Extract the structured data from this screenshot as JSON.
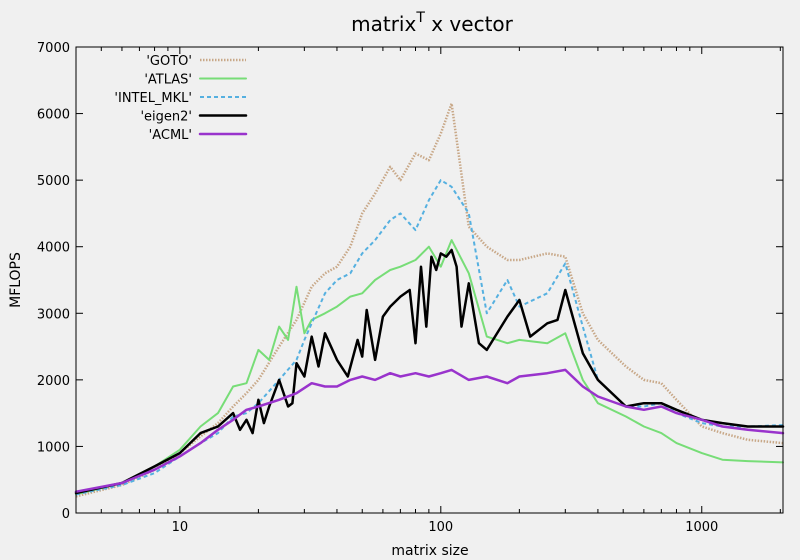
{
  "chart_data": {
    "type": "line",
    "title": "matrix",
    "title_superscript": "T",
    "title_suffix": " x vector",
    "xlabel": "matrix size",
    "ylabel": "MFLOPS",
    "x_scale": "log",
    "xlim": [
      4,
      2048
    ],
    "ylim": [
      0,
      7000
    ],
    "x_ticks": [
      10,
      100,
      1000
    ],
    "x_tick_labels": [
      "10",
      "100",
      "1000"
    ],
    "y_ticks": [
      0,
      1000,
      2000,
      3000,
      4000,
      5000,
      6000,
      7000
    ],
    "y_tick_labels": [
      "0",
      "1000",
      "2000",
      "3000",
      "4000",
      "5000",
      "6000",
      "7000"
    ],
    "grid": false,
    "legend_position": "top-left",
    "series": [
      {
        "name": "'GOTO'",
        "color": "#c8a888",
        "style": "dotted-thick",
        "x": [
          4,
          6,
          8,
          10,
          12,
          14,
          16,
          18,
          20,
          24,
          28,
          32,
          36,
          40,
          45,
          50,
          56,
          64,
          70,
          80,
          90,
          100,
          110,
          128,
          150,
          180,
          200,
          256,
          300,
          350,
          400,
          512,
          600,
          700,
          800,
          1000,
          1200,
          1500,
          2048
        ],
        "y": [
          250,
          420,
          650,
          900,
          1150,
          1350,
          1600,
          1800,
          2000,
          2500,
          2900,
          3400,
          3600,
          3700,
          4000,
          4500,
          4800,
          5200,
          5000,
          5400,
          5300,
          5700,
          6150,
          4300,
          4000,
          3800,
          3800,
          3900,
          3850,
          3000,
          2600,
          2200,
          2000,
          1950,
          1700,
          1300,
          1200,
          1100,
          1050
        ]
      },
      {
        "name": "'ATLAS'",
        "color": "#77dd77",
        "style": "solid",
        "x": [
          4,
          6,
          8,
          10,
          12,
          14,
          16,
          18,
          20,
          22,
          24,
          26,
          28,
          30,
          32,
          36,
          40,
          45,
          50,
          56,
          64,
          70,
          80,
          90,
          100,
          110,
          128,
          150,
          180,
          200,
          256,
          300,
          350,
          400,
          512,
          600,
          700,
          800,
          1000,
          1200,
          1500,
          2048
        ],
        "y": [
          280,
          450,
          700,
          950,
          1300,
          1500,
          1900,
          1950,
          2450,
          2300,
          2800,
          2600,
          3400,
          2700,
          2900,
          3000,
          3100,
          3250,
          3300,
          3500,
          3650,
          3700,
          3800,
          4000,
          3700,
          4100,
          3600,
          2650,
          2550,
          2600,
          2550,
          2700,
          2000,
          1650,
          1450,
          1300,
          1200,
          1050,
          900,
          800,
          780,
          760
        ]
      },
      {
        "name": "'INTEL_MKL'",
        "color": "#55b0e0",
        "style": "dashed",
        "x": [
          4,
          6,
          8,
          10,
          12,
          14,
          16,
          18,
          20,
          24,
          28,
          30,
          32,
          36,
          40,
          45,
          50,
          56,
          64,
          70,
          80,
          90,
          100,
          110,
          128,
          150,
          180,
          200,
          256,
          300,
          350,
          400,
          512,
          600,
          700,
          800,
          1000,
          1200,
          1500,
          2048
        ],
        "y": [
          280,
          420,
          600,
          850,
          1050,
          1200,
          1450,
          1500,
          1650,
          2000,
          2300,
          2600,
          2850,
          3300,
          3500,
          3600,
          3900,
          4100,
          4400,
          4500,
          4250,
          4700,
          5000,
          4900,
          4500,
          3000,
          3500,
          3100,
          3300,
          3750,
          2800,
          2000,
          1600,
          1600,
          1650,
          1500,
          1350,
          1300,
          1300,
          1320
        ]
      },
      {
        "name": "'eigen2'",
        "color": "#000000",
        "style": "solid-thick",
        "x": [
          4,
          6,
          8,
          10,
          12,
          14,
          16,
          17,
          18,
          19,
          20,
          21,
          22,
          24,
          26,
          27,
          28,
          30,
          32,
          34,
          36,
          40,
          44,
          48,
          50,
          52,
          56,
          60,
          64,
          70,
          76,
          80,
          84,
          88,
          92,
          96,
          100,
          105,
          110,
          115,
          120,
          128,
          140,
          150,
          180,
          200,
          220,
          256,
          280,
          300,
          350,
          400,
          512,
          600,
          700,
          800,
          1000,
          1200,
          1500,
          2048
        ],
        "y": [
          300,
          450,
          700,
          900,
          1200,
          1300,
          1500,
          1250,
          1400,
          1200,
          1700,
          1350,
          1600,
          2000,
          1600,
          1650,
          2250,
          2050,
          2650,
          2200,
          2700,
          2300,
          2050,
          2600,
          2350,
          3050,
          2300,
          2950,
          3100,
          3250,
          3350,
          2550,
          3700,
          2800,
          3850,
          3650,
          3900,
          3850,
          3950,
          3700,
          2800,
          3450,
          2550,
          2450,
          2950,
          3200,
          2650,
          2850,
          2900,
          3350,
          2400,
          2000,
          1600,
          1650,
          1650,
          1550,
          1400,
          1350,
          1300,
          1300
        ]
      },
      {
        "name": "'ACML'",
        "color": "#9933cc",
        "style": "solid-thick",
        "x": [
          4,
          6,
          8,
          10,
          12,
          14,
          16,
          18,
          20,
          24,
          28,
          32,
          36,
          40,
          45,
          50,
          56,
          64,
          70,
          80,
          90,
          100,
          110,
          128,
          150,
          180,
          200,
          256,
          300,
          350,
          400,
          512,
          600,
          700,
          800,
          1000,
          1200,
          1500,
          2048
        ],
        "y": [
          320,
          450,
          650,
          850,
          1050,
          1250,
          1400,
          1550,
          1600,
          1700,
          1800,
          1950,
          1900,
          1900,
          2000,
          2050,
          2000,
          2100,
          2050,
          2100,
          2050,
          2100,
          2150,
          2000,
          2050,
          1950,
          2050,
          2100,
          2150,
          1900,
          1750,
          1600,
          1550,
          1600,
          1500,
          1400,
          1300,
          1250,
          1200
        ]
      }
    ]
  }
}
